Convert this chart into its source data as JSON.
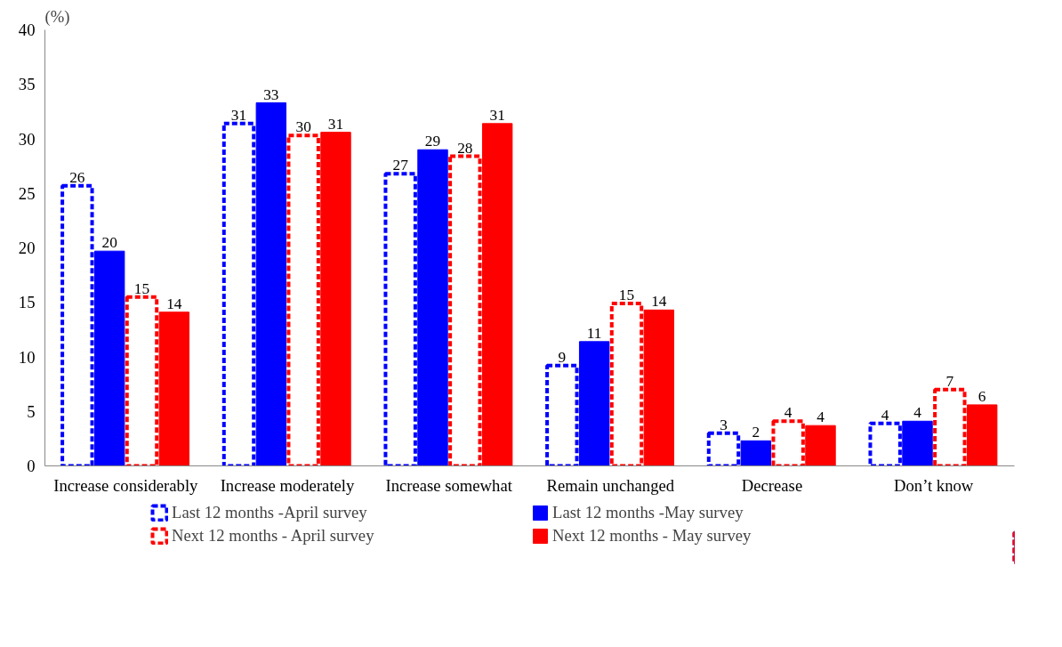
{
  "chart_data": {
    "type": "bar",
    "ylabel": "(%)",
    "categories": [
      "Increase considerably",
      "Increase moderately",
      "Increase somewhat",
      "Remain unchanged",
      "Decrease",
      "Don’t know"
    ],
    "ylim": [
      0,
      40
    ],
    "yticks": [
      0,
      5,
      10,
      15,
      20,
      25,
      30,
      35,
      40
    ],
    "grid": false,
    "legend": "bottom",
    "series": [
      {
        "name": "Last 12 months -April survey",
        "color": "#0000ff",
        "line_style": "dashed",
        "values": [
          25.7,
          31.4,
          26.8,
          9.2,
          3.0,
          3.9
        ],
        "value_labels": [
          "26",
          "31",
          "27",
          "9",
          "3",
          "4"
        ]
      },
      {
        "name": "Last 12 months -May survey",
        "color": "#0000ff",
        "line_style": "solid",
        "values": [
          19.7,
          33.3,
          29.0,
          11.4,
          2.3,
          4.1
        ],
        "value_labels": [
          "20",
          "33",
          "29",
          "11",
          "2",
          "4"
        ]
      },
      {
        "name": "Next 12 months - April survey",
        "color": "#ff0000",
        "line_style": "dashed",
        "values": [
          15.5,
          30.3,
          28.4,
          14.9,
          4.1,
          7.0
        ],
        "value_labels": [
          "15",
          "30",
          "28",
          "15",
          "4",
          "7"
        ]
      },
      {
        "name": "Next 12 months - May survey",
        "color": "#ff0000",
        "line_style": "solid",
        "values": [
          14.1,
          30.6,
          31.4,
          14.3,
          3.7,
          5.6
        ],
        "value_labels": [
          "14",
          "31",
          "31",
          "14",
          "4",
          "6"
        ]
      }
    ]
  }
}
